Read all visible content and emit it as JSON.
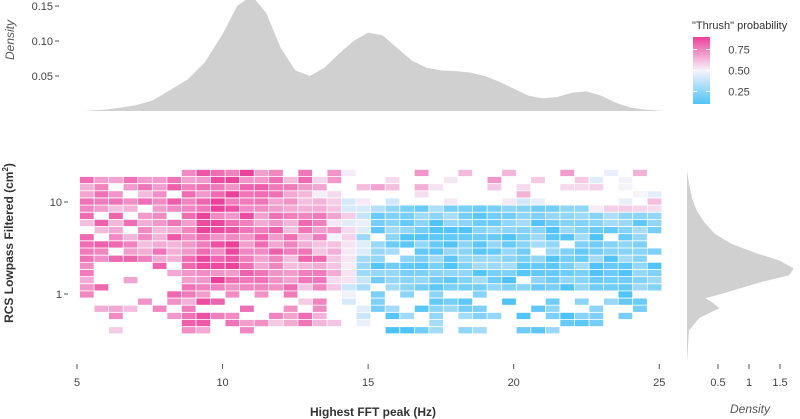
{
  "chart_data": {
    "type": "heatmap",
    "xlabel": "Highest FFT peak (Hz)",
    "ylabel": "RCS Lowpass Filtered (cm²)",
    "ylabel_text": "RCS Lowpass Filtered (cm",
    "ylabel_sup": "2",
    "ylabel_close": ")",
    "x_axis": {
      "range": [
        5,
        25.3
      ],
      "ticks": [
        5,
        10,
        15,
        20,
        25
      ]
    },
    "y_axis": {
      "scale": "log",
      "range": [
        0.17,
        30
      ],
      "ticks": [
        1,
        10
      ],
      "tick_labels": [
        "1",
        "10"
      ]
    },
    "fill_variable": "\"Thrush\" probability",
    "color_scale": {
      "low": "#4fc3f7",
      "mid": "#f7f3fb",
      "high": "#ec3f9a",
      "range": [
        0.1,
        0.9
      ]
    },
    "legend": {
      "title": "\"Thrush\" probability",
      "ticks": [
        0.75,
        0.5,
        0.25
      ],
      "tick_labels": [
        "0.75",
        "0.50",
        "0.25"
      ],
      "placement": "top-right"
    },
    "top_density": {
      "label": "Density",
      "ticks": [
        0.05,
        0.1,
        0.15
      ],
      "tick_labels": [
        "0.05",
        "0.10",
        "0.15"
      ],
      "ylim": [
        0,
        0.165
      ],
      "x": [
        5.2,
        6,
        7,
        7.6,
        8.2,
        8.8,
        9.4,
        10,
        10.5,
        11,
        11.5,
        12,
        12.5,
        13,
        13.5,
        14,
        14.5,
        15,
        15.5,
        16,
        16.5,
        17,
        17.5,
        18,
        18.5,
        19,
        19.5,
        20,
        20.5,
        21,
        21.5,
        22,
        22.5,
        23,
        23.5,
        24,
        24.5,
        25.2
      ],
      "y": [
        0,
        0.002,
        0.008,
        0.015,
        0.03,
        0.045,
        0.07,
        0.11,
        0.15,
        0.165,
        0.14,
        0.09,
        0.058,
        0.05,
        0.062,
        0.082,
        0.1,
        0.112,
        0.108,
        0.09,
        0.072,
        0.062,
        0.058,
        0.057,
        0.055,
        0.05,
        0.042,
        0.032,
        0.022,
        0.018,
        0.02,
        0.026,
        0.028,
        0.022,
        0.012,
        0.005,
        0.002,
        0
      ]
    },
    "right_density": {
      "label": "Density",
      "ticks": [
        0.5,
        1,
        1.5
      ],
      "tick_labels": [
        "0.5",
        "1",
        "1.5"
      ],
      "xlim": [
        0,
        1.9
      ],
      "y": [
        0.18,
        0.4,
        0.55,
        0.7,
        0.8,
        0.9,
        1,
        1.15,
        1.35,
        1.6,
        1.9,
        2.3,
        2.8,
        3.5,
        4.5,
        6,
        8,
        11,
        16,
        22
      ],
      "density": [
        0,
        0.03,
        0.2,
        0.52,
        0.42,
        0.3,
        0.55,
        0.85,
        1.2,
        1.65,
        1.72,
        1.5,
        1.1,
        0.72,
        0.45,
        0.28,
        0.16,
        0.08,
        0.03,
        0
      ]
    },
    "tiles": {
      "cols": 40,
      "rows": 23,
      "x_start": 5.1,
      "x_step": 0.5,
      "log10_y_top": 1.35,
      "log10_y_step": 0.0777
    }
  }
}
